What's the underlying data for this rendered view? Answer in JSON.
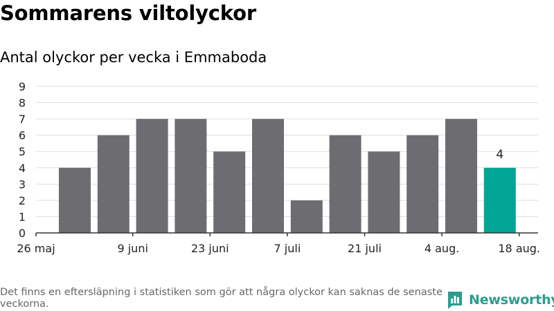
{
  "header": {
    "title": "Sommarens viltolyckor",
    "subtitle": "Antal olyckor per vecka i Emmaboda"
  },
  "footer": {
    "note": "Det finns en eftersläpning i statistiken som gör att några olyckor kan saknas de senaste veckorna.",
    "brand": "Newsworthy"
  },
  "colors": {
    "bar": "#6d6c71",
    "highlight": "#00a595",
    "grid": "#dddddd",
    "axis": "#333333",
    "brand": "#2a9d8f"
  },
  "chart_data": {
    "type": "bar",
    "x_tick_labels": [
      "26 maj",
      "9 juni",
      "23 juni",
      "7 juli",
      "21 juli",
      "4 aug.",
      "18 aug."
    ],
    "values": [
      4,
      6,
      7,
      7,
      5,
      7,
      2,
      6,
      5,
      6,
      7,
      4
    ],
    "highlight_index": 11,
    "data_labels": [
      {
        "index": 11,
        "text": "4"
      }
    ],
    "ylim": [
      0,
      9
    ],
    "yticks": [
      0,
      1,
      2,
      3,
      4,
      5,
      6,
      7,
      8,
      9
    ],
    "grid": true
  }
}
